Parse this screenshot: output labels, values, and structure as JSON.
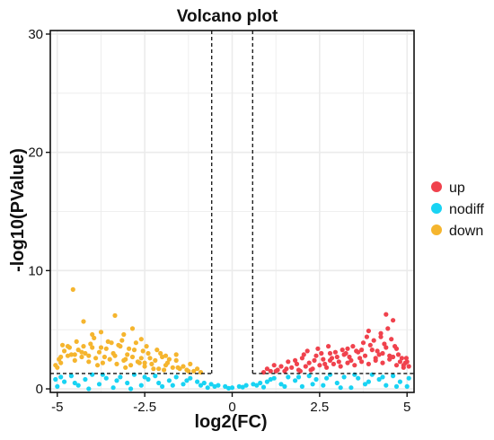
{
  "chart_data": {
    "type": "scatter",
    "title": "Volcano plot",
    "xlabel": "log2(FC)",
    "ylabel": "-log10(PValue)",
    "xlim": [
      -5.2,
      5.2
    ],
    "ylim": [
      -0.3,
      30.3
    ],
    "x_ticks": [
      -5,
      -2.5,
      0,
      2.5,
      5
    ],
    "x_tick_labels": [
      "-5",
      "-2.5",
      "0",
      "2.5",
      "5"
    ],
    "y_ticks": [
      0,
      10,
      20,
      30
    ],
    "y_tick_labels": [
      "0",
      "10",
      "20",
      "30"
    ],
    "grid": true,
    "thresholds": {
      "log2fc": [
        -0.585,
        0.585
      ],
      "neg_log10_p": 1.3
    },
    "legend_position": "right",
    "series": [
      {
        "name": "up",
        "color": "#f0424d",
        "points": [
          [
            0.9,
            1.4
          ],
          [
            1.1,
            1.5
          ],
          [
            1.3,
            1.6
          ],
          [
            1.5,
            1.5
          ],
          [
            1.7,
            1.8
          ],
          [
            1.9,
            1.6
          ],
          [
            2.1,
            1.9
          ],
          [
            2.3,
            1.7
          ],
          [
            2.5,
            2.0
          ],
          [
            2.7,
            1.8
          ],
          [
            2.9,
            2.1
          ],
          [
            3.1,
            1.9
          ],
          [
            3.3,
            2.2
          ],
          [
            3.5,
            2.0
          ],
          [
            3.7,
            2.3
          ],
          [
            3.9,
            2.1
          ],
          [
            4.1,
            2.4
          ],
          [
            4.3,
            2.2
          ],
          [
            4.5,
            2.5
          ],
          [
            4.7,
            2.0
          ],
          [
            4.9,
            1.8
          ],
          [
            1.2,
            2.0
          ],
          [
            1.6,
            2.3
          ],
          [
            2.0,
            2.6
          ],
          [
            2.2,
            2.2
          ],
          [
            2.4,
            2.8
          ],
          [
            2.6,
            2.5
          ],
          [
            2.8,
            3.0
          ],
          [
            3.0,
            2.7
          ],
          [
            3.2,
            2.9
          ],
          [
            3.4,
            2.4
          ],
          [
            3.6,
            3.1
          ],
          [
            3.8,
            2.8
          ],
          [
            4.0,
            3.3
          ],
          [
            4.2,
            2.9
          ],
          [
            4.4,
            3.5
          ],
          [
            4.6,
            2.7
          ],
          [
            4.8,
            2.3
          ],
          [
            1.4,
            1.9
          ],
          [
            1.8,
            2.4
          ],
          [
            2.15,
            3.2
          ],
          [
            2.45,
            3.4
          ],
          [
            2.75,
            3.6
          ],
          [
            2.95,
            3.1
          ],
          [
            3.15,
            3.3
          ],
          [
            3.25,
            3.0
          ],
          [
            3.55,
            3.2
          ],
          [
            3.75,
            3.9
          ],
          [
            3.85,
            4.4
          ],
          [
            3.95,
            3.7
          ],
          [
            4.05,
            4.1
          ],
          [
            4.15,
            3.2
          ],
          [
            4.25,
            4.7
          ],
          [
            4.35,
            3.8
          ],
          [
            4.45,
            5.1
          ],
          [
            4.55,
            4.2
          ],
          [
            4.65,
            3.6
          ],
          [
            4.75,
            2.9
          ],
          [
            4.85,
            2.6
          ],
          [
            4.95,
            2.2
          ],
          [
            2.05,
            2.9
          ],
          [
            2.35,
            2.4
          ],
          [
            2.55,
            3.0
          ],
          [
            2.65,
            2.1
          ],
          [
            2.85,
            2.6
          ],
          [
            3.05,
            2.3
          ],
          [
            3.35,
            2.7
          ],
          [
            3.45,
            3.6
          ],
          [
            3.65,
            2.6
          ],
          [
            4.1,
            2.6
          ],
          [
            4.3,
            3.0
          ],
          [
            4.5,
            2.8
          ],
          [
            4.7,
            3.4
          ],
          [
            4.9,
            2.0
          ],
          [
            1.0,
            1.7
          ],
          [
            1.25,
            1.5
          ],
          [
            1.55,
            1.7
          ],
          [
            1.85,
            2.1
          ],
          [
            1.95,
            1.5
          ],
          [
            2.25,
            1.6
          ],
          [
            4.4,
            6.3
          ],
          [
            4.6,
            5.8
          ],
          [
            4.25,
            4.4
          ],
          [
            3.9,
            4.9
          ],
          [
            5.0,
            2.3
          ],
          [
            5.05,
            1.9
          ],
          [
            4.98,
            2.6
          ],
          [
            3.7,
            3.3
          ],
          [
            3.3,
            3.4
          ],
          [
            2.8,
            2.4
          ]
        ]
      },
      {
        "name": "nodiff",
        "color": "#19d3f3",
        "points": [
          [
            -5.0,
            0.2
          ],
          [
            -4.8,
            0.6
          ],
          [
            -4.6,
            1.1
          ],
          [
            -4.4,
            0.3
          ],
          [
            -4.2,
            0.8
          ],
          [
            -4.0,
            1.2
          ],
          [
            -3.8,
            0.4
          ],
          [
            -3.6,
            0.9
          ],
          [
            -3.4,
            0.1
          ],
          [
            -3.2,
            1.0
          ],
          [
            -3.0,
            0.5
          ],
          [
            -2.8,
            1.2
          ],
          [
            -2.6,
            0.3
          ],
          [
            -2.4,
            0.8
          ],
          [
            -2.2,
            1.1
          ],
          [
            -2.0,
            0.2
          ],
          [
            -1.8,
            0.7
          ],
          [
            -1.6,
            1.0
          ],
          [
            -1.4,
            0.4
          ],
          [
            -1.2,
            0.9
          ],
          [
            -1.0,
            0.6
          ],
          [
            -0.8,
            0.5
          ],
          [
            -0.6,
            0.4
          ],
          [
            -0.4,
            0.3
          ],
          [
            -0.2,
            0.2
          ],
          [
            0.0,
            0.1
          ],
          [
            0.2,
            0.2
          ],
          [
            0.4,
            0.3
          ],
          [
            0.6,
            0.4
          ],
          [
            0.8,
            0.5
          ],
          [
            1.0,
            0.6
          ],
          [
            1.2,
            0.9
          ],
          [
            1.4,
            0.4
          ],
          [
            1.6,
            1.0
          ],
          [
            1.8,
            0.7
          ],
          [
            2.0,
            0.2
          ],
          [
            2.2,
            1.1
          ],
          [
            2.4,
            0.8
          ],
          [
            2.6,
            0.3
          ],
          [
            2.8,
            1.2
          ],
          [
            3.0,
            0.5
          ],
          [
            3.2,
            1.0
          ],
          [
            3.4,
            0.1
          ],
          [
            3.6,
            0.9
          ],
          [
            3.8,
            0.4
          ],
          [
            4.0,
            1.2
          ],
          [
            4.2,
            0.8
          ],
          [
            4.4,
            0.3
          ],
          [
            4.6,
            1.1
          ],
          [
            4.8,
            0.6
          ],
          [
            5.0,
            0.2
          ],
          [
            -4.9,
            1.0
          ],
          [
            -4.5,
            0.5
          ],
          [
            -4.1,
            0.0
          ],
          [
            -3.7,
            1.2
          ],
          [
            -3.3,
            0.7
          ],
          [
            -2.9,
            0.0
          ],
          [
            -2.5,
            1.0
          ],
          [
            -2.1,
            0.5
          ],
          [
            -1.7,
            0.3
          ],
          [
            -1.3,
            0.7
          ],
          [
            -0.9,
            0.3
          ],
          [
            -0.5,
            0.2
          ],
          [
            -0.1,
            0.05
          ],
          [
            0.3,
            0.15
          ],
          [
            0.7,
            0.3
          ],
          [
            1.1,
            0.8
          ],
          [
            1.5,
            0.2
          ],
          [
            1.9,
            1.0
          ],
          [
            2.3,
            0.4
          ],
          [
            2.7,
            0.9
          ],
          [
            3.1,
            0.1
          ],
          [
            3.5,
            1.2
          ],
          [
            3.9,
            0.6
          ],
          [
            4.3,
            1.0
          ],
          [
            4.7,
            0.2
          ],
          [
            5.05,
            0.9
          ],
          [
            -5.05,
            0.8
          ],
          [
            -0.7,
            0.1
          ],
          [
            0.9,
            0.15
          ]
        ]
      },
      {
        "name": "down",
        "color": "#f5b52e",
        "points": [
          [
            -0.9,
            1.4
          ],
          [
            -1.1,
            1.5
          ],
          [
            -1.3,
            1.6
          ],
          [
            -1.5,
            1.7
          ],
          [
            -1.7,
            1.8
          ],
          [
            -1.9,
            2.0
          ],
          [
            -2.1,
            1.7
          ],
          [
            -2.3,
            2.1
          ],
          [
            -2.5,
            1.9
          ],
          [
            -2.7,
            2.3
          ],
          [
            -2.9,
            2.0
          ],
          [
            -3.1,
            2.4
          ],
          [
            -3.3,
            2.1
          ],
          [
            -3.5,
            2.5
          ],
          [
            -3.7,
            2.2
          ],
          [
            -3.9,
            2.6
          ],
          [
            -4.1,
            2.3
          ],
          [
            -4.3,
            2.7
          ],
          [
            -4.5,
            2.4
          ],
          [
            -4.7,
            2.8
          ],
          [
            -4.9,
            2.2
          ],
          [
            -5.0,
            1.8
          ],
          [
            -1.2,
            2.1
          ],
          [
            -1.6,
            2.4
          ],
          [
            -2.0,
            2.7
          ],
          [
            -2.2,
            2.4
          ],
          [
            -2.4,
            3.0
          ],
          [
            -2.6,
            2.6
          ],
          [
            -2.8,
            3.3
          ],
          [
            -3.0,
            2.9
          ],
          [
            -3.2,
            3.6
          ],
          [
            -3.4,
            3.0
          ],
          [
            -3.6,
            3.4
          ],
          [
            -3.8,
            3.1
          ],
          [
            -4.0,
            3.5
          ],
          [
            -4.2,
            3.0
          ],
          [
            -4.4,
            3.3
          ],
          [
            -4.6,
            2.9
          ],
          [
            -4.8,
            3.2
          ],
          [
            -1.4,
            1.9
          ],
          [
            -1.8,
            2.5
          ],
          [
            -2.15,
            3.3
          ],
          [
            -2.45,
            3.6
          ],
          [
            -2.75,
            3.9
          ],
          [
            -2.95,
            3.4
          ],
          [
            -3.15,
            4.1
          ],
          [
            -3.25,
            3.7
          ],
          [
            -3.55,
            4.0
          ],
          [
            -3.75,
            3.5
          ],
          [
            -3.95,
            4.3
          ],
          [
            -4.05,
            3.8
          ],
          [
            -4.25,
            3.6
          ],
          [
            -4.45,
            4.0
          ],
          [
            -4.65,
            3.5
          ],
          [
            -4.85,
            3.7
          ],
          [
            -2.05,
            3.0
          ],
          [
            -2.35,
            2.6
          ],
          [
            -2.55,
            3.2
          ],
          [
            -2.65,
            2.2
          ],
          [
            -2.85,
            2.7
          ],
          [
            -3.05,
            2.5
          ],
          [
            -3.35,
            2.8
          ],
          [
            -3.45,
            3.9
          ],
          [
            -3.65,
            2.7
          ],
          [
            -4.1,
            2.8
          ],
          [
            -4.3,
            3.1
          ],
          [
            -4.5,
            2.9
          ],
          [
            -4.7,
            3.6
          ],
          [
            -4.9,
            2.7
          ],
          [
            -1.0,
            1.7
          ],
          [
            -1.25,
            1.5
          ],
          [
            -1.55,
            1.8
          ],
          [
            -1.85,
            2.2
          ],
          [
            -1.95,
            1.6
          ],
          [
            -2.25,
            1.7
          ],
          [
            -4.95,
            2.5
          ],
          [
            -5.05,
            2.0
          ],
          [
            -3.85,
            2.0
          ],
          [
            -3.05,
            1.8
          ],
          [
            -2.5,
            2.2
          ],
          [
            -4.55,
            8.4
          ],
          [
            -4.25,
            5.7
          ],
          [
            -3.35,
            6.2
          ],
          [
            -2.85,
            5.1
          ],
          [
            -3.75,
            4.8
          ],
          [
            -4.0,
            4.6
          ],
          [
            -3.1,
            4.6
          ],
          [
            -2.6,
            4.2
          ],
          [
            -1.9,
            2.8
          ],
          [
            -1.6,
            2.9
          ]
        ]
      }
    ]
  }
}
